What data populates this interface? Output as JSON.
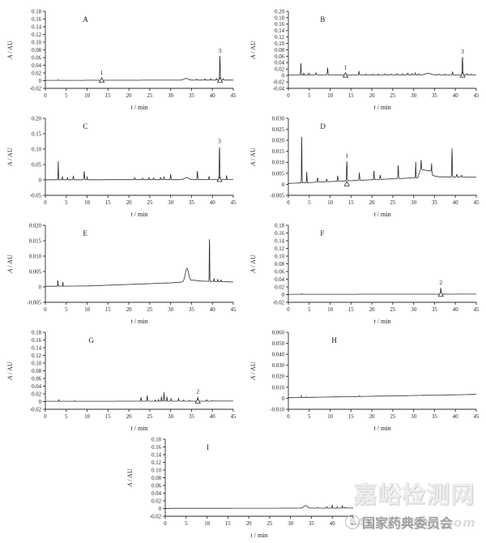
{
  "figure": {
    "background": "#ffffff",
    "line_color": "#2b2b2b",
    "text_color": "#1a1a1a"
  },
  "watermark": {
    "site_name": "嘉峪检测网",
    "org_name": "国家药典委员会",
    "site_url": "AnyTesting.com",
    "colors": {
      "site_name": "#ededed",
      "org_name": "#a0a0a0",
      "site_url": "#dcdcdc"
    }
  },
  "chart_data": [
    {
      "type": "line",
      "panel": "A",
      "xlabel": "t / min",
      "ylabel": "A / AU",
      "xlim": [
        0,
        45
      ],
      "xticks": [
        "0",
        "5",
        "10",
        "15",
        "20",
        "25",
        "30",
        "35",
        "40",
        "45"
      ],
      "ylim": [
        -0.02,
        0.18
      ],
      "yticks": [
        "0.18",
        "0.16",
        "0.14",
        "0.12",
        "0.10",
        "0.08",
        "0.06",
        "0.04",
        "0.02",
        "0",
        "-0.02"
      ],
      "grid": false,
      "letter_x": 0.2,
      "baseline": [
        [
          0,
          0.0008
        ],
        [
          45,
          0.0015
        ]
      ],
      "peaks_chw": [
        [
          3.0,
          0.0015,
          0.07
        ],
        [
          13.5,
          0.006,
          0.09
        ],
        [
          33.7,
          0.0045,
          0.7
        ],
        [
          36.2,
          0.0025,
          0.1
        ],
        [
          38.2,
          0.003,
          0.1
        ],
        [
          39.6,
          0.0035,
          0.1
        ],
        [
          41.0,
          0.004,
          0.1
        ],
        [
          41.8,
          0.063,
          0.09
        ],
        [
          42.6,
          0.0035,
          0.1
        ]
      ],
      "labeled_peaks": [
        {
          "label": "1",
          "x": 13.5,
          "marker": true
        },
        {
          "label": "3",
          "x": 41.8,
          "marker": true
        }
      ]
    },
    {
      "type": "line",
      "panel": "B",
      "xlabel": "t / min",
      "ylabel": "A / AU",
      "xlim": [
        0,
        45
      ],
      "xticks": [
        "0",
        "5",
        "10",
        "15",
        "20",
        "25",
        "30",
        "35",
        "40",
        "45"
      ],
      "ylim": [
        -0.04,
        0.2
      ],
      "yticks": [
        "0.20",
        "0.18",
        "0.16",
        "0.14",
        "0.12",
        "0.10",
        "0.08",
        "0.06",
        "0.04",
        "0.02",
        "0",
        "-0.02",
        "-0.04"
      ],
      "grid": false,
      "letter_x": 0.17,
      "baseline": [
        [
          0,
          0.0015
        ],
        [
          45,
          0.002
        ]
      ],
      "peaks_chw": [
        [
          3.0,
          0.038,
          0.07
        ],
        [
          3.7,
          0.006,
          0.07
        ],
        [
          4.9,
          0.006,
          0.08
        ],
        [
          6.6,
          0.007,
          0.12
        ],
        [
          9.4,
          0.023,
          0.09
        ],
        [
          13.7,
          0.007,
          0.09
        ],
        [
          16.9,
          0.012,
          0.09
        ],
        [
          18.6,
          0.003,
          0.1
        ],
        [
          20.2,
          0.0025,
          0.1
        ],
        [
          21.5,
          0.003,
          0.1
        ],
        [
          23.2,
          0.0035,
          0.1
        ],
        [
          24.6,
          0.003,
          0.1
        ],
        [
          26.0,
          0.004,
          0.1
        ],
        [
          27.3,
          0.0035,
          0.1
        ],
        [
          28.6,
          0.006,
          0.1
        ],
        [
          29.6,
          0.0045,
          0.1
        ],
        [
          30.4,
          0.007,
          0.1
        ],
        [
          31.2,
          0.004,
          0.1
        ],
        [
          33.5,
          0.005,
          0.9
        ],
        [
          36.0,
          0.003,
          0.15
        ],
        [
          37.5,
          0.0025,
          0.12
        ],
        [
          39.3,
          0.0095,
          0.09
        ],
        [
          41.7,
          0.057,
          0.09
        ],
        [
          42.8,
          0.004,
          0.1
        ],
        [
          43.8,
          0.0025,
          0.1
        ]
      ],
      "labeled_peaks": [
        {
          "label": "1",
          "x": 13.7,
          "marker": true
        },
        {
          "label": "3",
          "x": 41.7,
          "marker": true
        }
      ]
    },
    {
      "type": "line",
      "panel": "C",
      "xlabel": "t / min",
      "ylabel": "A / AU",
      "xlim": [
        0,
        45
      ],
      "xticks": [
        "0",
        "5",
        "10",
        "15",
        "20",
        "25",
        "30",
        "35",
        "40",
        "45"
      ],
      "ylim": [
        -0.05,
        0.2
      ],
      "yticks": [
        "0.20",
        "0.15",
        "0.10",
        "0.05",
        "0",
        "-0.05"
      ],
      "grid": false,
      "letter_x": 0.2,
      "baseline": [
        [
          0,
          0.0005
        ],
        [
          45,
          0.001
        ]
      ],
      "peaks_chw": [
        [
          3.1,
          0.061,
          0.07
        ],
        [
          4.1,
          0.011,
          0.08
        ],
        [
          5.3,
          0.007,
          0.08
        ],
        [
          6.7,
          0.011,
          0.1
        ],
        [
          9.3,
          0.028,
          0.09
        ],
        [
          10.0,
          0.009,
          0.08
        ],
        [
          21.4,
          0.007,
          0.1
        ],
        [
          23.3,
          0.005,
          0.1
        ],
        [
          24.8,
          0.007,
          0.1
        ],
        [
          25.9,
          0.006,
          0.1
        ],
        [
          27.6,
          0.007,
          0.1
        ],
        [
          28.4,
          0.009,
          0.1
        ],
        [
          30.0,
          0.018,
          0.09
        ],
        [
          33.8,
          0.006,
          0.8
        ],
        [
          36.4,
          0.028,
          0.09
        ],
        [
          39.2,
          0.01,
          0.09
        ],
        [
          41.7,
          0.108,
          0.09
        ],
        [
          43.4,
          0.013,
          0.09
        ]
      ],
      "labeled_peaks": [
        {
          "label": "3",
          "x": 41.7,
          "marker": true
        }
      ]
    },
    {
      "type": "line",
      "panel": "D",
      "xlabel": "t / min",
      "ylabel": "A / AU",
      "xlim": [
        0,
        45
      ],
      "xticks": [
        "0",
        "5",
        "10",
        "15",
        "20",
        "25",
        "30",
        "35",
        "40",
        "45"
      ],
      "ylim": [
        -0.005,
        0.03
      ],
      "yticks": [
        "0.030",
        "0.025",
        "0.020",
        "0.015",
        "0.010",
        "0.005",
        "0",
        "-0.005"
      ],
      "grid": false,
      "letter_x": 0.17,
      "baseline": [
        [
          0,
          0.0004
        ],
        [
          31,
          0.003
        ],
        [
          31.6,
          0.0068
        ],
        [
          34.2,
          0.006
        ],
        [
          34.6,
          0.004
        ],
        [
          36,
          0.0034
        ],
        [
          45,
          0.0033
        ]
      ],
      "peaks_chw": [
        [
          3.2,
          0.021,
          0.07
        ],
        [
          4.4,
          0.005,
          0.07
        ],
        [
          7.0,
          0.002,
          0.1
        ],
        [
          9.2,
          0.0012,
          0.1
        ],
        [
          11.8,
          0.0025,
          0.1
        ],
        [
          14.0,
          0.009,
          0.09
        ],
        [
          17.0,
          0.0035,
          0.09
        ],
        [
          20.5,
          0.004,
          0.09
        ],
        [
          22.0,
          0.002,
          0.09
        ],
        [
          26.3,
          0.0062,
          0.09
        ],
        [
          30.5,
          0.0075,
          0.07
        ],
        [
          31.8,
          0.0045,
          0.08
        ],
        [
          34.3,
          0.004,
          0.07
        ],
        [
          39.2,
          0.013,
          0.08
        ],
        [
          40.3,
          0.0012,
          0.1
        ],
        [
          41.5,
          0.0008,
          0.1
        ]
      ],
      "labeled_peaks": [
        {
          "label": "1",
          "x": 14.0,
          "marker": true
        }
      ]
    },
    {
      "type": "line",
      "panel": "E",
      "xlabel": "t / min",
      "ylabel": "A / AU",
      "xlim": [
        0,
        45
      ],
      "xticks": [
        "0",
        "5",
        "10",
        "15",
        "20",
        "25",
        "30",
        "35",
        "40",
        "45"
      ],
      "ylim": [
        -0.005,
        0.02
      ],
      "yticks": [
        "0.020",
        "0.015",
        "0.010",
        "0.005",
        "0",
        "-0.005"
      ],
      "grid": false,
      "letter_x": 0.2,
      "baseline": [
        [
          0,
          0.0002
        ],
        [
          10,
          0.0003
        ],
        [
          20,
          0.0008
        ],
        [
          30,
          0.0013
        ],
        [
          33,
          0.0016
        ],
        [
          35.5,
          0.0022
        ],
        [
          37,
          0.0019
        ],
        [
          45,
          0.0016
        ]
      ],
      "peaks_chw": [
        [
          3.0,
          0.002,
          0.06
        ],
        [
          4.2,
          0.0014,
          0.06
        ],
        [
          33.9,
          0.0042,
          0.55
        ],
        [
          39.3,
          0.0143,
          0.07
        ],
        [
          40.4,
          0.0009,
          0.08
        ],
        [
          41.3,
          0.0007,
          0.08
        ],
        [
          42.1,
          0.0006,
          0.08
        ]
      ],
      "labeled_peaks": []
    },
    {
      "type": "line",
      "panel": "F",
      "xlabel": "t / min",
      "ylabel": "A / AU",
      "xlim": [
        0,
        45
      ],
      "xticks": [
        "0",
        "5",
        "10",
        "15",
        "20",
        "25",
        "30",
        "35",
        "40",
        "45"
      ],
      "ylim": [
        -0.02,
        0.18
      ],
      "yticks": [
        "0.18",
        "0.16",
        "0.14",
        "0.12",
        "0.10",
        "0.08",
        "0.06",
        "0.04",
        "0.02",
        "0",
        "-0.02"
      ],
      "grid": false,
      "letter_x": 0.17,
      "baseline": [
        [
          0,
          0.0008
        ],
        [
          45,
          0.0012
        ]
      ],
      "peaks_chw": [
        [
          3.2,
          0.0018,
          0.06
        ],
        [
          36.5,
          0.0165,
          0.08
        ],
        [
          37.3,
          0.0015,
          0.08
        ]
      ],
      "labeled_peaks": [
        {
          "label": "2",
          "x": 36.5,
          "marker": true
        }
      ]
    },
    {
      "type": "line",
      "panel": "G",
      "xlabel": "t / min",
      "ylabel": "A / AU",
      "xlim": [
        0,
        45
      ],
      "xticks": [
        "0",
        "5",
        "10",
        "15",
        "20",
        "25",
        "30",
        "35",
        "40",
        "45"
      ],
      "ylim": [
        -0.02,
        0.18
      ],
      "yticks": [
        "0.18",
        "0.16",
        "0.14",
        "0.12",
        "0.10",
        "0.08",
        "0.06",
        "0.04",
        "0.02",
        "0",
        "-0.02"
      ],
      "grid": false,
      "letter_x": 0.23,
      "baseline": [
        [
          0,
          0.0008
        ],
        [
          45,
          0.0012
        ]
      ],
      "peaks_chw": [
        [
          3.2,
          0.004,
          0.07
        ],
        [
          7.0,
          0.001,
          0.1
        ],
        [
          22.9,
          0.01,
          0.09
        ],
        [
          24.4,
          0.0145,
          0.09
        ],
        [
          26.3,
          0.003,
          0.09
        ],
        [
          27.1,
          0.004,
          0.09
        ],
        [
          27.8,
          0.012,
          0.08
        ],
        [
          28.4,
          0.023,
          0.08
        ],
        [
          29.1,
          0.012,
          0.08
        ],
        [
          30.1,
          0.0065,
          0.09
        ],
        [
          31.9,
          0.008,
          0.09
        ],
        [
          33.1,
          0.003,
          0.1
        ],
        [
          34.6,
          0.002,
          0.1
        ],
        [
          36.5,
          0.011,
          0.09
        ],
        [
          38.6,
          0.0035,
          0.1
        ],
        [
          40.0,
          0.0015,
          0.1
        ]
      ],
      "labeled_peaks": [
        {
          "label": "2",
          "x": 36.5,
          "marker": true
        }
      ]
    },
    {
      "type": "line",
      "panel": "H",
      "xlabel": "t / min",
      "ylabel": "A / AU",
      "xlim": [
        0,
        45
      ],
      "xticks": [
        "0",
        "5",
        "10",
        "15",
        "20",
        "25",
        "30",
        "35",
        "40",
        "45"
      ],
      "ylim": [
        -0.01,
        0.06
      ],
      "yticks": [
        "0.060",
        "0.050",
        "0.040",
        "0.030",
        "0.020",
        "0.010",
        "0",
        "-0.010"
      ],
      "grid": false,
      "letter_x": 0.23,
      "baseline": [
        [
          0,
          0.0005
        ],
        [
          45,
          0.0035
        ]
      ],
      "peaks_chw": [
        [
          3.1,
          0.0015,
          0.07
        ],
        [
          4.2,
          0.0007,
          0.07
        ],
        [
          17.0,
          0.0006,
          0.08
        ],
        [
          21.0,
          0.0004,
          0.08
        ]
      ],
      "labeled_peaks": []
    },
    {
      "type": "line",
      "panel": "I",
      "xlabel": "t / min",
      "ylabel": "A / AU",
      "xlim": [
        0,
        45
      ],
      "xticks": [
        "0",
        "5",
        "10",
        "15",
        "20",
        "25",
        "30",
        "35",
        "40",
        "45"
      ],
      "ylim": [
        -0.02,
        0.18
      ],
      "yticks": [
        "0.18",
        "0.16",
        "0.14",
        "0.12",
        "0.10",
        "0.08",
        "0.06",
        "0.04",
        "0.02",
        "0",
        "-0.02"
      ],
      "grid": false,
      "letter_x": 0.22,
      "baseline": [
        [
          0,
          0.0005
        ],
        [
          20,
          0.0008
        ],
        [
          30,
          0.001
        ],
        [
          45,
          0.0012
        ]
      ],
      "peaks_chw": [
        [
          33.6,
          0.0065,
          0.6
        ],
        [
          36.5,
          0.0015,
          0.15
        ],
        [
          38.7,
          0.004,
          0.1
        ],
        [
          40.0,
          0.007,
          0.09
        ],
        [
          41.2,
          0.0035,
          0.1
        ],
        [
          42.4,
          0.006,
          0.09
        ],
        [
          43.1,
          0.0025,
          0.1
        ]
      ],
      "labeled_peaks": []
    }
  ]
}
